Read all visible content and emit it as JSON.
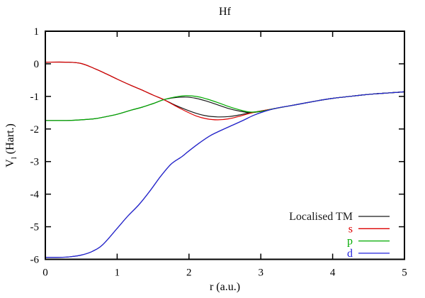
{
  "window": {
    "background": "#ffffff"
  },
  "chart_data": {
    "type": "line",
    "title": "Hf",
    "xlabel": "r (a.u.)",
    "ylabel": "V_l (Hart.)",
    "ylabel_parts": {
      "base": "V",
      "sub": "l",
      "rest": " (Hart.)"
    },
    "xlim": [
      0,
      5
    ],
    "ylim": [
      -6,
      1
    ],
    "xticks": [
      0,
      1,
      2,
      3,
      4,
      5
    ],
    "yticks": [
      1,
      0,
      -1,
      -2,
      -3,
      -4,
      -5,
      -6
    ],
    "grid": false,
    "axis_color": "#000000",
    "legend": {
      "position": "inside-bottom-right",
      "entries": [
        {
          "label": "Localised TM",
          "color": "#1a1a1a"
        },
        {
          "label": "s",
          "color": "#dd0000"
        },
        {
          "label": "p",
          "color": "#00aa00"
        },
        {
          "label": "d",
          "color": "#2222dd"
        }
      ]
    },
    "series": [
      {
        "id": "localised-tm-s",
        "legend_label": "Localised TM",
        "color": "#1a1a1a",
        "points": [
          [
            0,
            0.05
          ],
          [
            0.3,
            0.05
          ],
          [
            0.5,
            0.01
          ],
          [
            0.7,
            -0.16
          ],
          [
            0.85,
            -0.31
          ],
          [
            1,
            -0.47
          ],
          [
            1.2,
            -0.67
          ],
          [
            1.35,
            -0.81
          ],
          [
            1.5,
            -0.96
          ],
          [
            1.65,
            -1.1
          ],
          [
            1.8,
            -1.26
          ],
          [
            1.95,
            -1.4
          ],
          [
            2.1,
            -1.52
          ],
          [
            2.25,
            -1.6
          ],
          [
            2.4,
            -1.63
          ],
          [
            2.55,
            -1.62
          ],
          [
            2.7,
            -1.57
          ],
          [
            2.85,
            -1.5
          ],
          [
            3,
            -1.45
          ],
          [
            3.2,
            -1.37
          ],
          [
            3.4,
            -1.29
          ],
          [
            3.6,
            -1.21
          ],
          [
            3.8,
            -1.13
          ],
          [
            4,
            -1.06
          ],
          [
            4.2,
            -1.01
          ],
          [
            4.4,
            -0.96
          ],
          [
            4.6,
            -0.92
          ],
          [
            4.8,
            -0.89
          ],
          [
            5,
            -0.86
          ]
        ]
      },
      {
        "id": "localised-tm-p",
        "legend_label": "Localised TM",
        "color": "#1a1a1a",
        "points": [
          [
            0,
            -1.74
          ],
          [
            0.3,
            -1.74
          ],
          [
            0.5,
            -1.72
          ],
          [
            0.7,
            -1.68
          ],
          [
            0.85,
            -1.62
          ],
          [
            1,
            -1.55
          ],
          [
            1.2,
            -1.42
          ],
          [
            1.35,
            -1.33
          ],
          [
            1.5,
            -1.22
          ],
          [
            1.65,
            -1.1
          ],
          [
            1.8,
            -1.04
          ],
          [
            1.95,
            -1.02
          ],
          [
            2.1,
            -1.06
          ],
          [
            2.25,
            -1.15
          ],
          [
            2.4,
            -1.26
          ],
          [
            2.55,
            -1.37
          ],
          [
            2.7,
            -1.45
          ],
          [
            2.85,
            -1.5
          ],
          [
            3,
            -1.46
          ],
          [
            3.2,
            -1.37
          ],
          [
            3.4,
            -1.29
          ],
          [
            3.6,
            -1.21
          ],
          [
            3.8,
            -1.13
          ],
          [
            4,
            -1.06
          ],
          [
            4.2,
            -1.01
          ],
          [
            4.4,
            -0.96
          ],
          [
            4.6,
            -0.92
          ],
          [
            4.8,
            -0.89
          ],
          [
            5,
            -0.86
          ]
        ]
      },
      {
        "id": "localised-tm-d",
        "legend_label": "Localised TM",
        "color": "#1a1a1a",
        "points": [
          [
            0,
            -5.94
          ],
          [
            0.2,
            -5.94
          ],
          [
            0.35,
            -5.92
          ],
          [
            0.5,
            -5.87
          ],
          [
            0.65,
            -5.76
          ],
          [
            0.8,
            -5.55
          ],
          [
            1,
            -5.05
          ],
          [
            1.15,
            -4.67
          ],
          [
            1.3,
            -4.33
          ],
          [
            1.45,
            -3.92
          ],
          [
            1.6,
            -3.47
          ],
          [
            1.75,
            -3.08
          ],
          [
            1.9,
            -2.85
          ],
          [
            2,
            -2.67
          ],
          [
            2.15,
            -2.42
          ],
          [
            2.3,
            -2.2
          ],
          [
            2.45,
            -2.04
          ],
          [
            2.6,
            -1.89
          ],
          [
            2.75,
            -1.74
          ],
          [
            2.9,
            -1.58
          ],
          [
            3.05,
            -1.46
          ],
          [
            3.2,
            -1.37
          ],
          [
            3.4,
            -1.29
          ],
          [
            3.6,
            -1.21
          ],
          [
            3.8,
            -1.13
          ],
          [
            4,
            -1.06
          ],
          [
            4.2,
            -1.01
          ],
          [
            4.4,
            -0.96
          ],
          [
            4.6,
            -0.92
          ],
          [
            4.8,
            -0.89
          ],
          [
            5,
            -0.86
          ]
        ]
      },
      {
        "id": "s",
        "legend_label": "s",
        "color": "#dd0000",
        "points": [
          [
            0,
            0.05
          ],
          [
            0.3,
            0.05
          ],
          [
            0.5,
            0.01
          ],
          [
            0.7,
            -0.16
          ],
          [
            0.85,
            -0.31
          ],
          [
            1,
            -0.47
          ],
          [
            1.2,
            -0.67
          ],
          [
            1.35,
            -0.81
          ],
          [
            1.5,
            -0.96
          ],
          [
            1.65,
            -1.1
          ],
          [
            1.8,
            -1.28
          ],
          [
            1.95,
            -1.45
          ],
          [
            2.1,
            -1.6
          ],
          [
            2.25,
            -1.69
          ],
          [
            2.4,
            -1.72
          ],
          [
            2.55,
            -1.69
          ],
          [
            2.7,
            -1.61
          ],
          [
            2.85,
            -1.52
          ],
          [
            3,
            -1.45
          ],
          [
            3.2,
            -1.37
          ],
          [
            3.4,
            -1.29
          ],
          [
            3.6,
            -1.21
          ],
          [
            3.8,
            -1.13
          ],
          [
            4,
            -1.06
          ],
          [
            4.2,
            -1.01
          ],
          [
            4.4,
            -0.96
          ],
          [
            4.6,
            -0.92
          ],
          [
            4.8,
            -0.89
          ],
          [
            5,
            -0.86
          ]
        ]
      },
      {
        "id": "p",
        "legend_label": "p",
        "color": "#00aa00",
        "points": [
          [
            0,
            -1.74
          ],
          [
            0.3,
            -1.74
          ],
          [
            0.5,
            -1.72
          ],
          [
            0.7,
            -1.68
          ],
          [
            0.85,
            -1.62
          ],
          [
            1,
            -1.55
          ],
          [
            1.2,
            -1.42
          ],
          [
            1.35,
            -1.33
          ],
          [
            1.5,
            -1.22
          ],
          [
            1.65,
            -1.1
          ],
          [
            1.8,
            -1.02
          ],
          [
            1.95,
            -0.98
          ],
          [
            2.1,
            -1
          ],
          [
            2.25,
            -1.08
          ],
          [
            2.4,
            -1.19
          ],
          [
            2.55,
            -1.31
          ],
          [
            2.7,
            -1.41
          ],
          [
            2.85,
            -1.48
          ],
          [
            3,
            -1.46
          ],
          [
            3.2,
            -1.37
          ],
          [
            3.4,
            -1.29
          ],
          [
            3.6,
            -1.21
          ],
          [
            3.8,
            -1.13
          ],
          [
            4,
            -1.06
          ],
          [
            4.2,
            -1.01
          ],
          [
            4.4,
            -0.96
          ],
          [
            4.6,
            -0.92
          ],
          [
            4.8,
            -0.89
          ],
          [
            5,
            -0.86
          ]
        ]
      },
      {
        "id": "d",
        "legend_label": "d",
        "color": "#2222dd",
        "points": [
          [
            0,
            -5.94
          ],
          [
            0.2,
            -5.94
          ],
          [
            0.35,
            -5.92
          ],
          [
            0.5,
            -5.87
          ],
          [
            0.65,
            -5.76
          ],
          [
            0.8,
            -5.55
          ],
          [
            1,
            -5.05
          ],
          [
            1.15,
            -4.67
          ],
          [
            1.3,
            -4.33
          ],
          [
            1.45,
            -3.92
          ],
          [
            1.6,
            -3.47
          ],
          [
            1.75,
            -3.08
          ],
          [
            1.9,
            -2.85
          ],
          [
            2,
            -2.67
          ],
          [
            2.15,
            -2.42
          ],
          [
            2.3,
            -2.2
          ],
          [
            2.45,
            -2.04
          ],
          [
            2.6,
            -1.89
          ],
          [
            2.75,
            -1.74
          ],
          [
            2.9,
            -1.58
          ],
          [
            3.05,
            -1.46
          ],
          [
            3.2,
            -1.37
          ],
          [
            3.4,
            -1.29
          ],
          [
            3.6,
            -1.21
          ],
          [
            3.8,
            -1.13
          ],
          [
            4,
            -1.06
          ],
          [
            4.2,
            -1.01
          ],
          [
            4.4,
            -0.96
          ],
          [
            4.6,
            -0.92
          ],
          [
            4.8,
            -0.89
          ],
          [
            5,
            -0.86
          ]
        ]
      }
    ]
  }
}
